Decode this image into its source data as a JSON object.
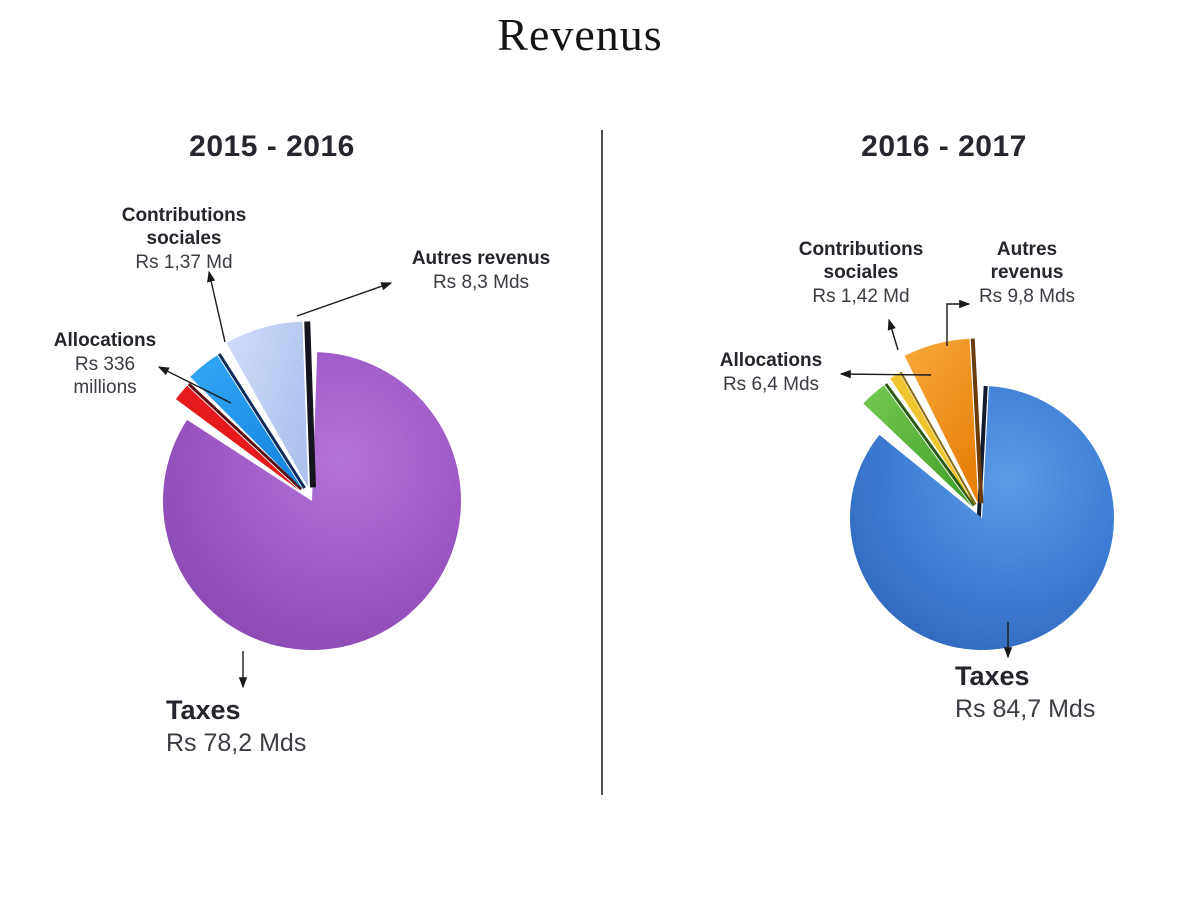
{
  "page": {
    "title": "Revenus",
    "background": "#ffffff"
  },
  "chart_data": [
    {
      "type": "pie",
      "period": "2015 - 2016",
      "currency": "Rs",
      "legend_position": "callouts",
      "slices": [
        {
          "name": "taxes",
          "label": "Taxes",
          "value_text": "Rs 78,2 Mds",
          "value_mds": 78.2,
          "color": "#9C57C2",
          "start_deg": 2,
          "end_deg": 303,
          "radius": 149,
          "explode": 0,
          "gradient": "gradPurple0",
          "edge": null,
          "edge_color": null,
          "edge_width": 0
        },
        {
          "name": "allocations",
          "label": "Allocations",
          "value_text": "Rs 336 millions",
          "value_mds": 0.336,
          "color": "#E51A1D",
          "start_deg": 306.5,
          "end_deg": 313,
          "radius": 154,
          "explode": 16,
          "gradient": null,
          "edge": "end",
          "edge_color": "#5a0a10",
          "edge_width": 3
        },
        {
          "name": "contributions-sociales",
          "label": "Contributions sociales",
          "value_text": "Rs 1,37 Md",
          "value_mds": 1.37,
          "color": "#2196F0",
          "start_deg": 315,
          "end_deg": 327.5,
          "radius": 159,
          "explode": 15,
          "gradient": "gradBlue0",
          "edge": "end",
          "edge_color": "#0d2c5e",
          "edge_width": 3
        },
        {
          "name": "autres-revenus",
          "label": "Autres revenus",
          "value_text": "Rs 8,3 Mds",
          "value_mds": 8.3,
          "color": "#BCCCF2",
          "start_deg": 330.5,
          "end_deg": 358,
          "radius": 166,
          "explode": 14,
          "gradient": "gradLightBlue0",
          "edge": "end",
          "edge_color": "#14141e",
          "edge_width": 6
        }
      ],
      "callouts": [
        {
          "name": "contributions-sociales",
          "title": "Contributions\nsociales",
          "value": "Rs 1,37 Md"
        },
        {
          "name": "autres-revenus",
          "title": "Autres revenus",
          "value": "Rs 8,3 Mds"
        },
        {
          "name": "allocations",
          "title": "Allocations",
          "value": "Rs 336\nmillions"
        },
        {
          "name": "taxes",
          "title": "Taxes",
          "value": "Rs 78,2 Mds"
        }
      ]
    },
    {
      "type": "pie",
      "period": "2016 - 2017",
      "currency": "Rs",
      "legend_position": "callouts",
      "slices": [
        {
          "name": "taxes",
          "label": "Taxes",
          "value_text": "Rs 84,7 Mds",
          "value_mds": 84.7,
          "color": "#3B7AD0",
          "start_deg": 3,
          "end_deg": 309,
          "radius": 132,
          "explode": 0,
          "gradient": "gradBlue1",
          "edge": "start",
          "edge_color": "#101b30",
          "edge_width": 4
        },
        {
          "name": "allocations",
          "label": "Allocations",
          "value_text": "Rs 6,4 Mds",
          "value_mds": 6.4,
          "color": "#4FAE33",
          "start_deg": 313.5,
          "end_deg": 324,
          "radius": 150,
          "explode": 15,
          "gradient": "gradGreen1",
          "edge": "end",
          "edge_color": "#2a5a12",
          "edge_width": 3
        },
        {
          "name": "contributions-sociales",
          "label": "Contributions sociales",
          "value_text": "Rs 1,42 Md",
          "value_mds": 1.42,
          "color": "#F0C62E",
          "start_deg": 326.5,
          "end_deg": 330.5,
          "radius": 152,
          "explode": 15,
          "gradient": null,
          "edge": "end",
          "edge_color": "#8a6a10",
          "edge_width": 2
        },
        {
          "name": "autres-revenus",
          "label": "Autres revenus",
          "value_text": "Rs 9,8 Mds",
          "value_mds": 9.8,
          "color": "#EF941C",
          "start_deg": 333.5,
          "end_deg": 357,
          "radius": 165,
          "explode": 15,
          "gradient": "gradOrange1",
          "edge": "end",
          "edge_color": "#6b3c0a",
          "edge_width": 4
        }
      ],
      "callouts": [
        {
          "name": "contributions-sociales",
          "title": "Contributions\nsociales",
          "value": "Rs 1,42 Md"
        },
        {
          "name": "autres-revenus",
          "title": "Autres\nrevenus",
          "value": "Rs 9,8 Mds"
        },
        {
          "name": "allocations",
          "title": "Allocations",
          "value": "Rs 6,4 Mds"
        },
        {
          "name": "taxes",
          "title": "Taxes",
          "value": "Rs 84,7 Mds"
        }
      ]
    }
  ]
}
